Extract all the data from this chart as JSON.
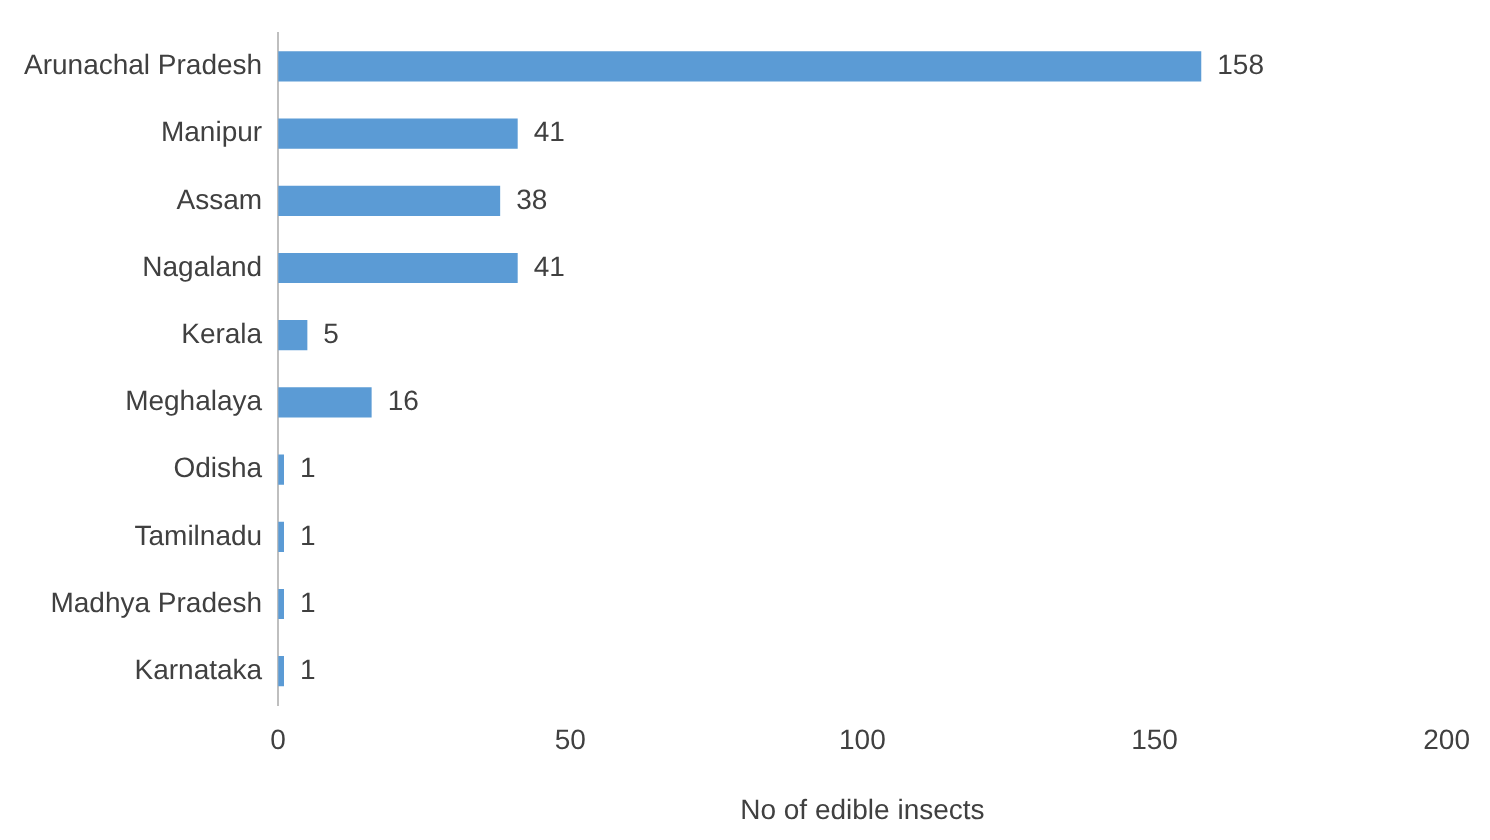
{
  "chart_data": {
    "type": "bar",
    "orientation": "horizontal",
    "xlabel": "No of edible insects",
    "categories": [
      "Arunachal Pradesh",
      "Manipur",
      "Assam",
      "Nagaland",
      "Kerala",
      "Meghalaya",
      "Odisha",
      "Tamilnadu",
      "Madhya Pradesh",
      "Karnataka"
    ],
    "values": [
      158,
      41,
      38,
      41,
      5,
      16,
      1,
      1,
      1,
      1
    ],
    "color": "#5b9bd5",
    "xlim": [
      0,
      200
    ],
    "xticks": [
      0,
      50,
      100,
      150,
      200
    ],
    "grid": false,
    "legend": false,
    "data_labels": true
  }
}
